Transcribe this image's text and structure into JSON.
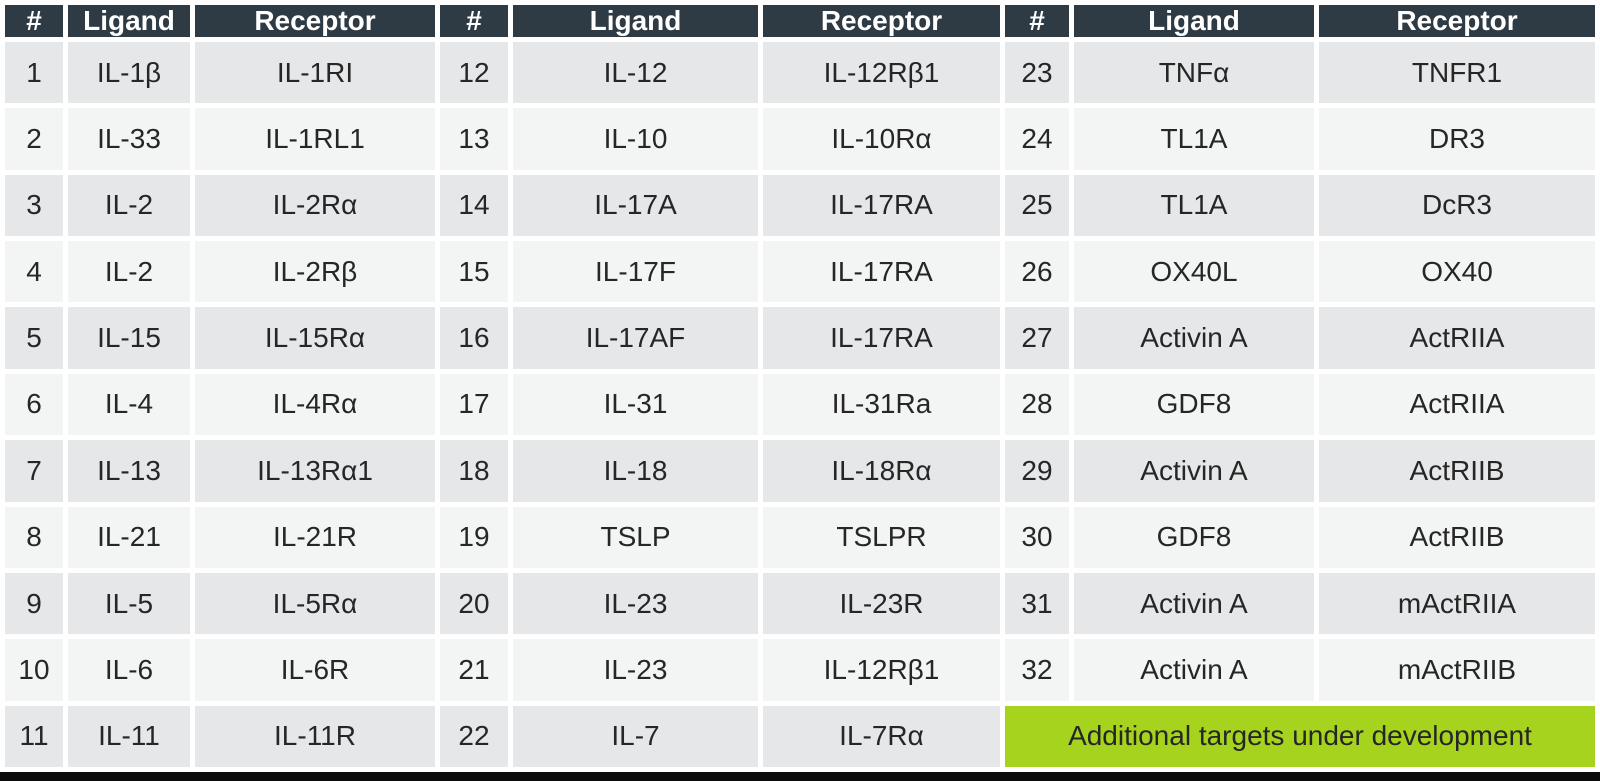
{
  "chart_data": {
    "type": "table",
    "column_headers": [
      "#",
      "Ligand",
      "Receptor"
    ],
    "groups": [
      {
        "rows": [
          {
            "num": "1",
            "ligand": "IL-1β",
            "receptor": "IL-1RI"
          },
          {
            "num": "2",
            "ligand": "IL-33",
            "receptor": "IL-1RL1"
          },
          {
            "num": "3",
            "ligand": "IL-2",
            "receptor": "IL-2Rα"
          },
          {
            "num": "4",
            "ligand": "IL-2",
            "receptor": "IL-2Rβ"
          },
          {
            "num": "5",
            "ligand": "IL-15",
            "receptor": "IL-15Rα"
          },
          {
            "num": "6",
            "ligand": "IL-4",
            "receptor": "IL-4Rα"
          },
          {
            "num": "7",
            "ligand": "IL-13",
            "receptor": "IL-13Rα1"
          },
          {
            "num": "8",
            "ligand": "IL-21",
            "receptor": "IL-21R"
          },
          {
            "num": "9",
            "ligand": "IL-5",
            "receptor": "IL-5Rα"
          },
          {
            "num": "10",
            "ligand": "IL-6",
            "receptor": "IL-6R"
          },
          {
            "num": "11",
            "ligand": "IL-11",
            "receptor": "IL-11R"
          }
        ]
      },
      {
        "rows": [
          {
            "num": "12",
            "ligand": "IL-12",
            "receptor": "IL-12Rβ1"
          },
          {
            "num": "13",
            "ligand": "IL-10",
            "receptor": "IL-10Rα"
          },
          {
            "num": "14",
            "ligand": "IL-17A",
            "receptor": "IL-17RA"
          },
          {
            "num": "15",
            "ligand": "IL-17F",
            "receptor": "IL-17RA"
          },
          {
            "num": "16",
            "ligand": "IL-17AF",
            "receptor": "IL-17RA"
          },
          {
            "num": "17",
            "ligand": "IL-31",
            "receptor": "IL-31Ra"
          },
          {
            "num": "18",
            "ligand": "IL-18",
            "receptor": "IL-18Rα"
          },
          {
            "num": "19",
            "ligand": "TSLP",
            "receptor": "TSLPR"
          },
          {
            "num": "20",
            "ligand": "IL-23",
            "receptor": "IL-23R"
          },
          {
            "num": "21",
            "ligand": "IL-23",
            "receptor": "IL-12Rβ1"
          },
          {
            "num": "22",
            "ligand": "IL-7",
            "receptor": "IL-7Rα"
          }
        ]
      },
      {
        "rows": [
          {
            "num": "23",
            "ligand": "TNFα",
            "receptor": "TNFR1"
          },
          {
            "num": "24",
            "ligand": "TL1A",
            "receptor": "DR3"
          },
          {
            "num": "25",
            "ligand": "TL1A",
            "receptor": "DcR3"
          },
          {
            "num": "26",
            "ligand": "OX40L",
            "receptor": "OX40"
          },
          {
            "num": "27",
            "ligand": "Activin A",
            "receptor": "ActRIIA"
          },
          {
            "num": "28",
            "ligand": "GDF8",
            "receptor": "ActRIIA"
          },
          {
            "num": "29",
            "ligand": "Activin A",
            "receptor": "ActRIIB"
          },
          {
            "num": "30",
            "ligand": "GDF8",
            "receptor": "ActRIIB"
          },
          {
            "num": "31",
            "ligand": "Activin A",
            "receptor": "mActRIIA"
          },
          {
            "num": "32",
            "ligand": "Activin A",
            "receptor": "mActRIIB"
          }
        ]
      }
    ],
    "footer_highlight": "Additional targets under development"
  },
  "colors": {
    "header_bg": "#2e3a44",
    "header_text": "#ffffff",
    "row_odd_bg": "#e6e7e8",
    "row_even_bg": "#f3f4f4",
    "cell_text": "#262626",
    "highlight_bg": "#a6d41e",
    "highlight_text": "#262626",
    "bottom_bar": "#0b0b0b"
  }
}
